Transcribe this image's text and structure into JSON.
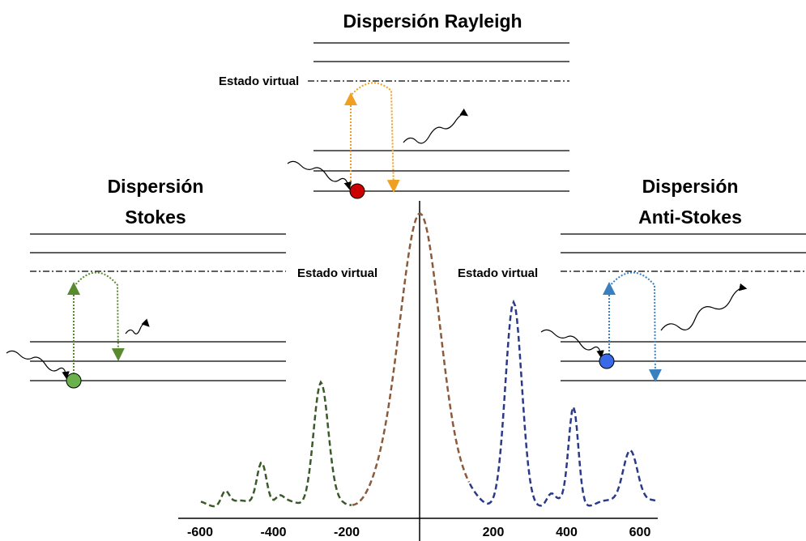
{
  "rayleigh": {
    "title": "Dispersión Rayleigh",
    "virtual_label": "Estado virtual"
  },
  "stokes": {
    "title_lines": [
      "Dispersión",
      "Stokes"
    ],
    "virtual_label": "Estado virtual"
  },
  "anti_stokes": {
    "title_lines": [
      "Dispersión",
      "Anti-Stokes"
    ],
    "virtual_label": "Estado virtual"
  },
  "spectrum": {
    "xticks": [
      -600,
      -400,
      -200,
      200,
      400,
      600
    ]
  }
}
